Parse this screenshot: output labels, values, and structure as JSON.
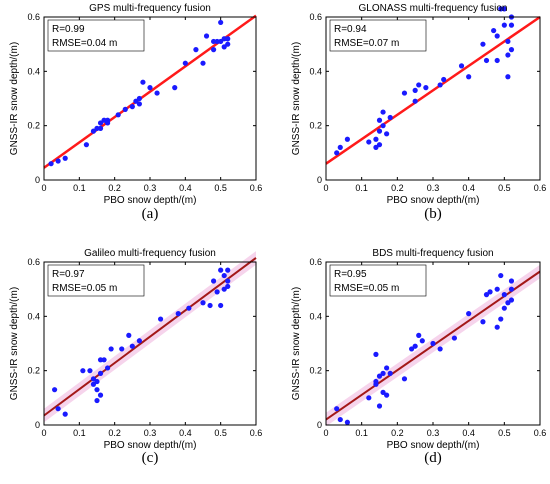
{
  "colors": {
    "points": "#1a1aff",
    "fit_line_a": "#ff1a1a",
    "fit_line_b": "#ff1a1a",
    "fit_line_c": "#a31818",
    "fit_line_d": "#a31818",
    "confidence_band": "#f6d4ec"
  },
  "chart_data": [
    {
      "type": "scatter",
      "title": "GPS multi-frequency fusion",
      "caption": "(a)",
      "xlabel": "PBO snow depth/(m)",
      "ylabel": "GNSS-IR snow depth/(m)",
      "xlim": [
        0,
        0.6
      ],
      "ylim": [
        0,
        0.6
      ],
      "xticks": [
        "0",
        "0.1",
        "0.2",
        "0.3",
        "0.4",
        "0.5",
        "0.6"
      ],
      "yticks": [
        "0",
        "0.2",
        "0.4",
        "0.6"
      ],
      "stats": {
        "r": "R=0.99",
        "rmse": "RMSE=0.04 m"
      },
      "band": false,
      "fit": {
        "x": [
          0,
          0.6
        ],
        "y": [
          0.045,
          0.605
        ]
      },
      "points": [
        [
          0.02,
          0.06
        ],
        [
          0.04,
          0.07
        ],
        [
          0.06,
          0.08
        ],
        [
          0.12,
          0.13
        ],
        [
          0.14,
          0.18
        ],
        [
          0.15,
          0.19
        ],
        [
          0.16,
          0.19
        ],
        [
          0.16,
          0.21
        ],
        [
          0.17,
          0.22
        ],
        [
          0.18,
          0.22
        ],
        [
          0.18,
          0.21
        ],
        [
          0.21,
          0.24
        ],
        [
          0.23,
          0.26
        ],
        [
          0.25,
          0.27
        ],
        [
          0.26,
          0.29
        ],
        [
          0.27,
          0.28
        ],
        [
          0.27,
          0.3
        ],
        [
          0.28,
          0.36
        ],
        [
          0.3,
          0.34
        ],
        [
          0.32,
          0.32
        ],
        [
          0.37,
          0.34
        ],
        [
          0.4,
          0.43
        ],
        [
          0.43,
          0.48
        ],
        [
          0.45,
          0.43
        ],
        [
          0.46,
          0.53
        ],
        [
          0.48,
          0.48
        ],
        [
          0.48,
          0.51
        ],
        [
          0.49,
          0.51
        ],
        [
          0.5,
          0.51
        ],
        [
          0.5,
          0.58
        ],
        [
          0.51,
          0.49
        ],
        [
          0.51,
          0.52
        ],
        [
          0.52,
          0.5
        ],
        [
          0.52,
          0.52
        ]
      ]
    },
    {
      "type": "scatter",
      "title": "GLONASS multi-frequency fusion",
      "caption": "(b)",
      "xlabel": "PBO snow depth/(m)",
      "ylabel": "GNSS-IR snow depth/(m)",
      "xlim": [
        0,
        0.6
      ],
      "ylim": [
        0,
        0.6
      ],
      "xticks": [
        "0",
        "0.1",
        "0.2",
        "0.3",
        "0.4",
        "0.5",
        "0.6"
      ],
      "yticks": [
        "0",
        "0.2",
        "0.4",
        "0.6"
      ],
      "stats": {
        "r": "R=0.94",
        "rmse": "RMSE=0.07 m"
      },
      "band": false,
      "fit": {
        "x": [
          0,
          0.6
        ],
        "y": [
          0.06,
          0.6
        ]
      },
      "points": [
        [
          0.03,
          0.1
        ],
        [
          0.04,
          0.12
        ],
        [
          0.06,
          0.15
        ],
        [
          0.12,
          0.14
        ],
        [
          0.14,
          0.12
        ],
        [
          0.14,
          0.15
        ],
        [
          0.15,
          0.13
        ],
        [
          0.15,
          0.18
        ],
        [
          0.15,
          0.22
        ],
        [
          0.16,
          0.2
        ],
        [
          0.16,
          0.25
        ],
        [
          0.17,
          0.17
        ],
        [
          0.18,
          0.23
        ],
        [
          0.22,
          0.32
        ],
        [
          0.25,
          0.29
        ],
        [
          0.25,
          0.33
        ],
        [
          0.26,
          0.35
        ],
        [
          0.28,
          0.34
        ],
        [
          0.32,
          0.35
        ],
        [
          0.33,
          0.37
        ],
        [
          0.38,
          0.42
        ],
        [
          0.4,
          0.38
        ],
        [
          0.44,
          0.5
        ],
        [
          0.45,
          0.44
        ],
        [
          0.47,
          0.55
        ],
        [
          0.48,
          0.53
        ],
        [
          0.48,
          0.44
        ],
        [
          0.49,
          0.63
        ],
        [
          0.5,
          0.57
        ],
        [
          0.5,
          0.63
        ],
        [
          0.51,
          0.38
        ],
        [
          0.51,
          0.46
        ],
        [
          0.51,
          0.51
        ],
        [
          0.52,
          0.48
        ],
        [
          0.52,
          0.57
        ],
        [
          0.52,
          0.6
        ]
      ]
    },
    {
      "type": "scatter",
      "title": "Galileo multi-frequency fusion",
      "caption": "(c)",
      "xlabel": "PBO snow depth/(m)",
      "ylabel": "GNSS-IR snow depth/(m)",
      "xlim": [
        0,
        0.6
      ],
      "ylim": [
        0,
        0.6
      ],
      "xticks": [
        "0",
        "0.1",
        "0.2",
        "0.3",
        "0.4",
        "0.5",
        "0.6"
      ],
      "yticks": [
        "0",
        "0.2",
        "0.4",
        "0.6"
      ],
      "stats": {
        "r": "R=0.97",
        "rmse": "RMSE=0.05 m"
      },
      "band": true,
      "fit": {
        "x": [
          0,
          0.6
        ],
        "y": [
          0.035,
          0.615
        ]
      },
      "points": [
        [
          0.03,
          0.13
        ],
        [
          0.04,
          0.06
        ],
        [
          0.06,
          0.04
        ],
        [
          0.11,
          0.2
        ],
        [
          0.13,
          0.2
        ],
        [
          0.14,
          0.17
        ],
        [
          0.14,
          0.15
        ],
        [
          0.15,
          0.13
        ],
        [
          0.15,
          0.09
        ],
        [
          0.15,
          0.16
        ],
        [
          0.16,
          0.11
        ],
        [
          0.16,
          0.19
        ],
        [
          0.16,
          0.24
        ],
        [
          0.17,
          0.24
        ],
        [
          0.18,
          0.21
        ],
        [
          0.19,
          0.28
        ],
        [
          0.22,
          0.28
        ],
        [
          0.24,
          0.33
        ],
        [
          0.25,
          0.29
        ],
        [
          0.27,
          0.31
        ],
        [
          0.33,
          0.39
        ],
        [
          0.38,
          0.41
        ],
        [
          0.41,
          0.43
        ],
        [
          0.45,
          0.45
        ],
        [
          0.47,
          0.44
        ],
        [
          0.48,
          0.53
        ],
        [
          0.49,
          0.49
        ],
        [
          0.5,
          0.57
        ],
        [
          0.5,
          0.44
        ],
        [
          0.51,
          0.5
        ],
        [
          0.51,
          0.55
        ],
        [
          0.52,
          0.51
        ],
        [
          0.52,
          0.57
        ],
        [
          0.52,
          0.53
        ]
      ]
    },
    {
      "type": "scatter",
      "title": "BDS multi-frequency fusion",
      "caption": "(d)",
      "xlabel": "PBO snow depth/(m)",
      "ylabel": "GNSS-IR snow depth/(m)",
      "xlim": [
        0,
        0.6
      ],
      "ylim": [
        0,
        0.6
      ],
      "xticks": [
        "0",
        "0.1",
        "0.2",
        "0.3",
        "0.4",
        "0.5",
        "0.6"
      ],
      "yticks": [
        "0",
        "0.2",
        "0.4",
        "0.6"
      ],
      "stats": {
        "r": "R=0.95",
        "rmse": "RMSE=0.05 m"
      },
      "band": true,
      "fit": {
        "x": [
          0,
          0.6
        ],
        "y": [
          0.02,
          0.565
        ]
      },
      "points": [
        [
          0.03,
          0.06
        ],
        [
          0.04,
          0.02
        ],
        [
          0.06,
          0.01
        ],
        [
          0.12,
          0.1
        ],
        [
          0.14,
          0.15
        ],
        [
          0.14,
          0.16
        ],
        [
          0.14,
          0.26
        ],
        [
          0.15,
          0.07
        ],
        [
          0.15,
          0.18
        ],
        [
          0.16,
          0.19
        ],
        [
          0.16,
          0.12
        ],
        [
          0.17,
          0.11
        ],
        [
          0.17,
          0.21
        ],
        [
          0.18,
          0.19
        ],
        [
          0.22,
          0.17
        ],
        [
          0.24,
          0.28
        ],
        [
          0.25,
          0.29
        ],
        [
          0.26,
          0.33
        ],
        [
          0.27,
          0.31
        ],
        [
          0.3,
          0.3
        ],
        [
          0.32,
          0.28
        ],
        [
          0.36,
          0.32
        ],
        [
          0.4,
          0.41
        ],
        [
          0.44,
          0.38
        ],
        [
          0.45,
          0.48
        ],
        [
          0.46,
          0.49
        ],
        [
          0.48,
          0.5
        ],
        [
          0.48,
          0.36
        ],
        [
          0.49,
          0.55
        ],
        [
          0.49,
          0.39
        ],
        [
          0.5,
          0.48
        ],
        [
          0.5,
          0.43
        ],
        [
          0.51,
          0.45
        ],
        [
          0.52,
          0.46
        ],
        [
          0.52,
          0.5
        ],
        [
          0.52,
          0.53
        ]
      ]
    }
  ]
}
